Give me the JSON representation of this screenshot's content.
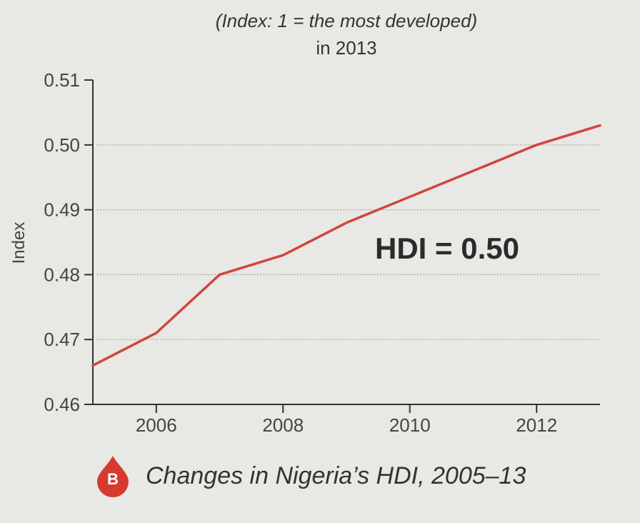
{
  "chart_data": {
    "type": "line",
    "subtitle": "(Index: 1 = the most developed)",
    "subtitle2": "in 2013",
    "ylabel": "Index",
    "xlabel": "",
    "xlim": [
      2005,
      2013
    ],
    "ylim": [
      0.46,
      0.51
    ],
    "x_ticks": [
      "2006",
      "2008",
      "2010",
      "2012"
    ],
    "x_tick_values": [
      2006,
      2008,
      2010,
      2012
    ],
    "y_ticks": [
      "0.46",
      "0.47",
      "0.48",
      "0.49",
      "0.50",
      "0.51"
    ],
    "y_tick_values": [
      0.46,
      0.47,
      0.48,
      0.49,
      0.5,
      0.51
    ],
    "grid": "horizontal dotted",
    "series": [
      {
        "x": [
          2005,
          2006,
          2007,
          2008,
          2009,
          2010,
          2011,
          2012,
          2013
        ],
        "values": [
          0.466,
          0.471,
          0.48,
          0.483,
          0.488,
          0.492,
          0.496,
          0.5,
          0.503
        ]
      }
    ],
    "annotation": "HDI = 0.50",
    "caption_badge": "B",
    "caption": "Changes in Nigeria’s HDI, 2005–13"
  },
  "colors": {
    "line": "#d0453f",
    "badge": "#d63a2f",
    "grid": "#a8a8a0",
    "axis": "#333333"
  }
}
